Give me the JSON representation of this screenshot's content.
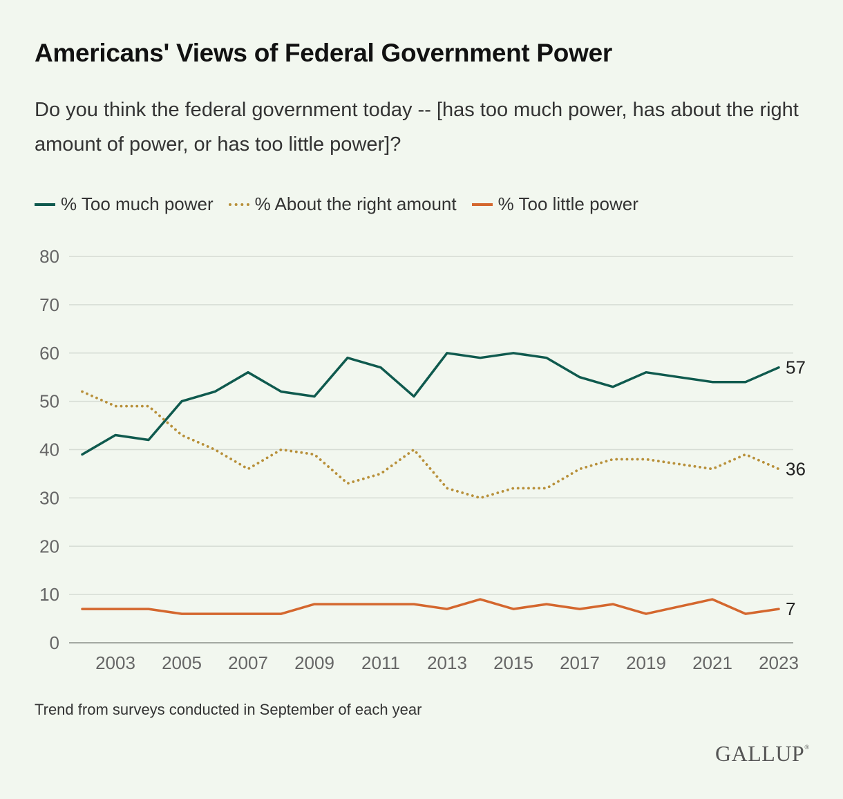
{
  "header": {
    "title": "Americans' Views of Federal Government Power",
    "subtitle": "Do you think the federal government today -- [has too much power, has about the right amount of power, or has too little power]?"
  },
  "footer": {
    "note": "Trend from surveys conducted in September of each year",
    "logo": "GALLUP"
  },
  "colors": {
    "too_much": "#0f5a4e",
    "right_amount": "#b8903a",
    "too_little": "#d4672e",
    "grid": "#d6dcd4",
    "background": "#f2f7ef"
  },
  "chart_data": {
    "type": "line",
    "title": "Americans' Views of Federal Government Power",
    "xlabel": "",
    "ylabel": "",
    "x": [
      2002,
      2003,
      2004,
      2005,
      2006,
      2007,
      2008,
      2009,
      2010,
      2011,
      2012,
      2013,
      2014,
      2015,
      2016,
      2017,
      2018,
      2019,
      2020,
      2021,
      2022,
      2023
    ],
    "x_tick_labels": [
      "2003",
      "2005",
      "2007",
      "2009",
      "2011",
      "2013",
      "2015",
      "2017",
      "2019",
      "2021",
      "2023"
    ],
    "x_ticks": [
      2003,
      2005,
      2007,
      2009,
      2011,
      2013,
      2015,
      2017,
      2019,
      2021,
      2023
    ],
    "y_ticks": [
      0,
      10,
      20,
      30,
      40,
      50,
      60,
      70,
      80
    ],
    "y_tick_labels": [
      "0",
      "10",
      "20",
      "30",
      "40",
      "50",
      "60",
      "70",
      "80"
    ],
    "xlim": [
      2002,
      2023
    ],
    "ylim": [
      0,
      80
    ],
    "grid": true,
    "legend_position": "top-left",
    "series": [
      {
        "name": "% Too much power",
        "style": "solid",
        "color": "#0f5a4e",
        "values": [
          39,
          43,
          42,
          50,
          52,
          56,
          52,
          51,
          59,
          57,
          51,
          60,
          59,
          60,
          59,
          55,
          53,
          56,
          55,
          54,
          54,
          57
        ],
        "end_label": "57"
      },
      {
        "name": "% About the right amount",
        "style": "dotted",
        "color": "#b8903a",
        "values": [
          52,
          49,
          49,
          43,
          40,
          36,
          40,
          39,
          33,
          35,
          40,
          32,
          30,
          32,
          32,
          36,
          38,
          38,
          37,
          36,
          39,
          36
        ],
        "end_label": "36"
      },
      {
        "name": "% Too little power",
        "style": "solid",
        "color": "#d4672e",
        "values": [
          7,
          7,
          7,
          6,
          6,
          6,
          6,
          8,
          8,
          8,
          8,
          7,
          9,
          7,
          8,
          7,
          8,
          6,
          7.5,
          9,
          6,
          7
        ],
        "end_label": "7"
      }
    ]
  }
}
